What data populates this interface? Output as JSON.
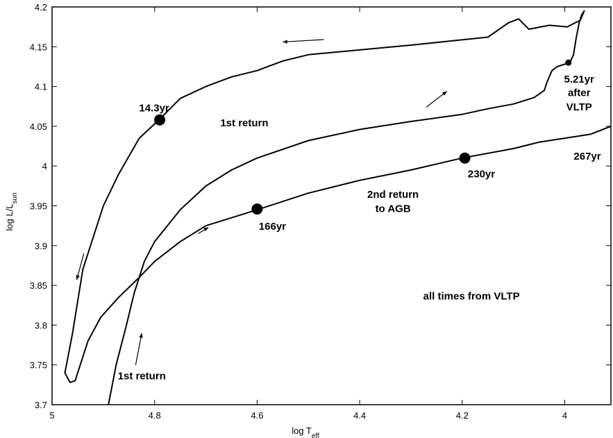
{
  "chart_data": {
    "type": "line",
    "xlabel": "log T",
    "xlabel_sub": "eff",
    "ylabel": "log L/L",
    "ylabel_sub": "sun",
    "xlim": [
      5.0,
      3.91
    ],
    "ylim": [
      3.7,
      4.2
    ],
    "x_reversed": true,
    "x_ticks": [
      5.0,
      4.8,
      4.6,
      4.4,
      4.2,
      4.0
    ],
    "x_tick_labels": [
      "5",
      "4.8",
      "4.6",
      "4.4",
      "4.2",
      "4"
    ],
    "y_ticks": [
      3.7,
      3.75,
      3.8,
      3.85,
      3.9,
      3.95,
      4.0,
      4.05,
      4.1,
      4.15,
      4.2
    ],
    "y_tick_labels": [
      "3.7",
      "3.75",
      "3.8",
      "3.85",
      "3.9",
      "3.95",
      "4",
      "4.05",
      "4.1",
      "4.15",
      "4.2"
    ],
    "grid": false,
    "series": [
      {
        "points": [
          [
            4.89,
            3.7
          ],
          [
            4.875,
            3.75
          ],
          [
            4.855,
            3.8
          ],
          [
            4.84,
            3.84
          ],
          [
            4.82,
            3.88
          ],
          [
            4.8,
            3.905
          ],
          [
            4.75,
            3.945
          ],
          [
            4.7,
            3.975
          ],
          [
            4.65,
            3.995
          ],
          [
            4.6,
            4.01
          ],
          [
            4.5,
            4.032
          ],
          [
            4.4,
            4.046
          ],
          [
            4.3,
            4.056
          ],
          [
            4.2,
            4.065
          ],
          [
            4.15,
            4.072
          ],
          [
            4.1,
            4.078
          ],
          [
            4.06,
            4.086
          ],
          [
            4.04,
            4.095
          ],
          [
            4.035,
            4.105
          ],
          [
            4.025,
            4.12
          ],
          [
            4.015,
            4.125
          ],
          [
            4.0,
            4.128
          ],
          [
            3.99,
            4.13
          ],
          [
            3.983,
            4.14
          ],
          [
            3.978,
            4.16
          ],
          [
            3.972,
            4.18
          ],
          [
            3.967,
            4.19
          ],
          [
            3.962,
            4.195
          ],
          [
            3.97,
            4.183
          ],
          [
            3.98,
            4.18
          ],
          [
            3.995,
            4.175
          ],
          [
            4.03,
            4.177
          ],
          [
            4.07,
            4.172
          ],
          [
            4.09,
            4.185
          ],
          [
            4.11,
            4.18
          ],
          [
            4.15,
            4.162
          ],
          [
            4.3,
            4.152
          ],
          [
            4.4,
            4.146
          ],
          [
            4.5,
            4.14
          ],
          [
            4.55,
            4.132
          ],
          [
            4.6,
            4.12
          ],
          [
            4.65,
            4.112
          ],
          [
            4.7,
            4.1
          ],
          [
            4.75,
            4.085
          ],
          [
            4.79,
            4.059
          ],
          [
            4.83,
            4.035
          ],
          [
            4.87,
            3.99
          ],
          [
            4.9,
            3.95
          ],
          [
            4.94,
            3.87
          ],
          [
            4.96,
            3.79
          ],
          [
            4.975,
            3.74
          ],
          [
            4.965,
            3.728
          ],
          [
            4.955,
            3.73
          ],
          [
            4.945,
            3.75
          ],
          [
            4.93,
            3.78
          ],
          [
            4.905,
            3.81
          ],
          [
            4.87,
            3.835
          ],
          [
            4.83,
            3.86
          ],
          [
            4.8,
            3.88
          ],
          [
            4.75,
            3.905
          ],
          [
            4.7,
            3.925
          ],
          [
            4.6,
            3.945
          ],
          [
            4.5,
            3.966
          ],
          [
            4.4,
            3.982
          ],
          [
            4.3,
            3.995
          ],
          [
            4.2,
            4.01
          ],
          [
            4.1,
            4.022
          ],
          [
            4.05,
            4.03
          ],
          [
            4.0,
            4.035
          ],
          [
            3.95,
            4.04
          ],
          [
            3.91,
            4.05
          ]
        ]
      }
    ],
    "markers": [
      {
        "x": 4.79,
        "y": 4.058,
        "label": "14.3yr"
      },
      {
        "x": 4.6,
        "y": 3.946,
        "label": "166yr"
      },
      {
        "x": 4.195,
        "y": 4.01,
        "label": "230yr"
      },
      {
        "x": 3.993,
        "y": 4.13,
        "label": "5.21yr after VLTP"
      }
    ],
    "annotations": [
      {
        "text": "1st return",
        "x": 4.625,
        "y": 4.05
      },
      {
        "text": "2nd return",
        "x": 4.335,
        "y": 3.96
      },
      {
        "text": "to AGB",
        "x": 4.335,
        "y": 3.942
      },
      {
        "text": "267yr",
        "x": 3.956,
        "y": 4.008
      },
      {
        "text": "1st return",
        "x": 4.825,
        "y": 3.732
      },
      {
        "text": "all times from VLTP",
        "x": 4.182,
        "y": 3.832
      },
      {
        "text": "5.21yr",
        "x": 3.972,
        "y": 4.105
      },
      {
        "text": "after",
        "x": 3.972,
        "y": 4.088
      },
      {
        "text": "VLTP",
        "x": 3.972,
        "y": 4.07
      }
    ],
    "arrows": [
      {
        "from": [
          4.47,
          4.159
        ],
        "to": [
          4.55,
          4.156
        ]
      },
      {
        "from": [
          4.27,
          4.074
        ],
        "to": [
          4.23,
          4.094
        ]
      },
      {
        "from": [
          4.938,
          3.89
        ],
        "to": [
          4.952,
          3.857
        ]
      },
      {
        "from": [
          4.837,
          3.75
        ],
        "to": [
          4.825,
          3.79
        ]
      },
      {
        "from": [
          4.715,
          3.915
        ],
        "to": [
          4.695,
          3.923
        ]
      }
    ]
  }
}
